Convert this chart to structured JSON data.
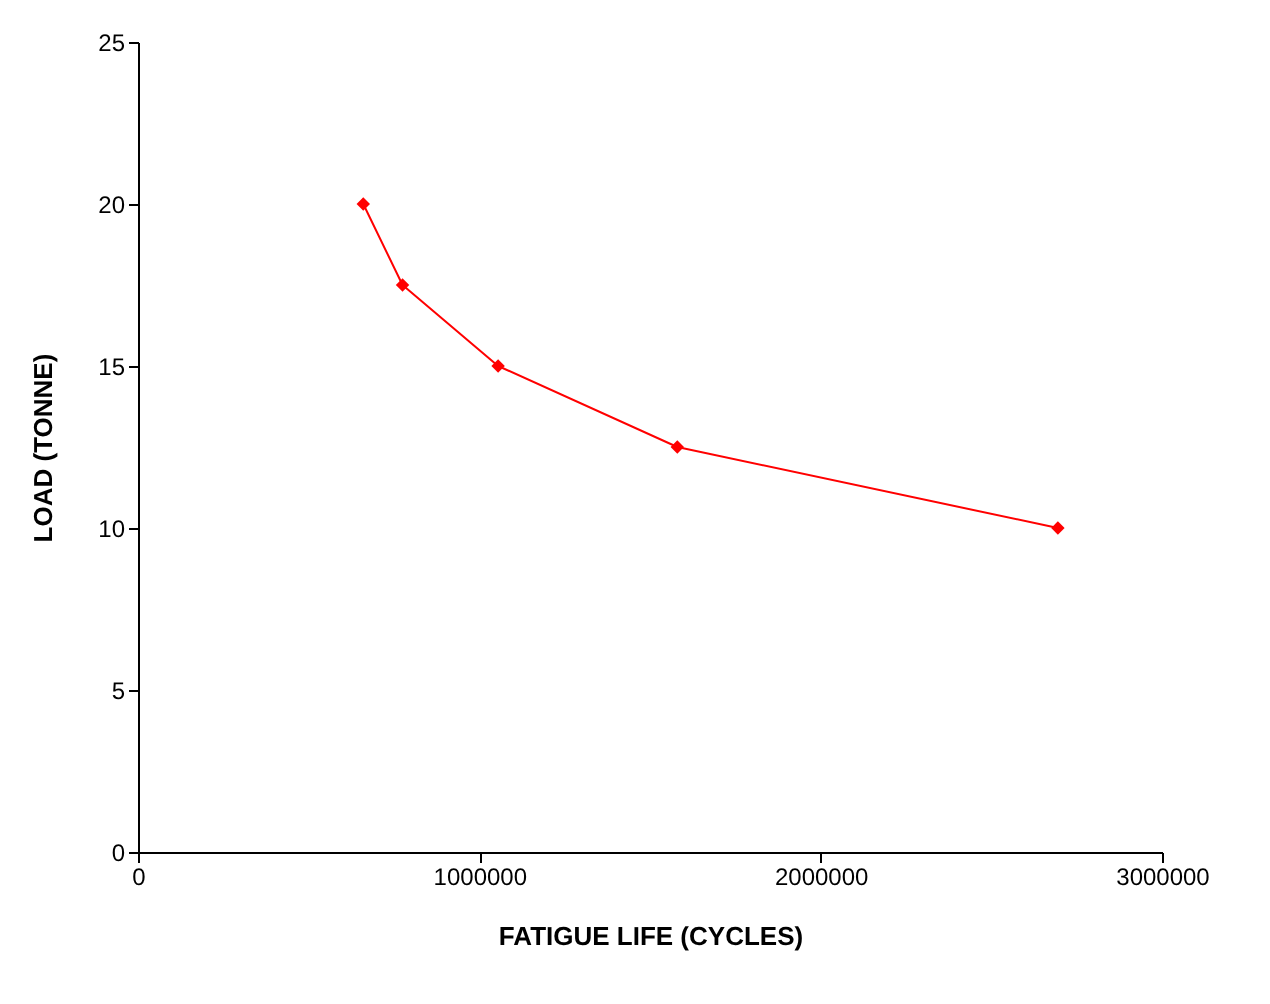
{
  "chart_data": {
    "type": "line",
    "xlabel": "FATIGUE LIFE (CYCLES)",
    "ylabel": "LOAD (TONNE)",
    "x": [
      660000,
      775000,
      1055000,
      1580000,
      2695000
    ],
    "series": [
      {
        "color": "#ff0000",
        "values": [
          20,
          17.5,
          15,
          12.5,
          10
        ]
      }
    ],
    "xlim": [
      0,
      3000000
    ],
    "xticks": [
      0,
      1000000,
      2000000,
      3000000
    ],
    "ylim": [
      0,
      25
    ],
    "yticks": [
      0,
      5,
      10,
      15,
      20,
      25
    ],
    "marker": "diamond",
    "line_style": "solid",
    "grid": false
  }
}
